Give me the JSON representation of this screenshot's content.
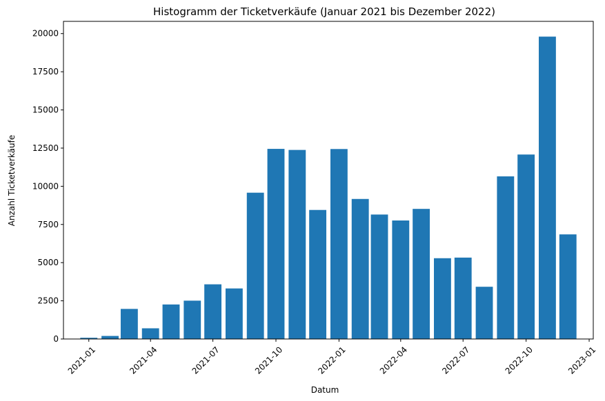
{
  "chart_data": {
    "type": "bar",
    "title": "Histogramm der Ticketverkäufe (Januar 2021 bis Dezember 2022)",
    "xlabel": "Datum",
    "ylabel": "Anzahl Ticketverkäufe",
    "x": [
      "2021-01-01",
      "2021-02-01",
      "2021-03-01",
      "2021-04-01",
      "2021-05-01",
      "2021-06-01",
      "2021-07-01",
      "2021-08-01",
      "2021-09-01",
      "2021-10-01",
      "2021-11-01",
      "2021-12-01",
      "2022-01-01",
      "2022-02-01",
      "2022-03-01",
      "2022-04-01",
      "2022-05-01",
      "2022-06-01",
      "2022-07-01",
      "2022-08-01",
      "2022-09-01",
      "2022-10-01",
      "2022-11-01",
      "2022-12-01"
    ],
    "values": [
      80,
      200,
      1970,
      700,
      2260,
      2510,
      3580,
      3310,
      9580,
      12450,
      12380,
      8450,
      12440,
      9170,
      8150,
      7760,
      8520,
      5290,
      5330,
      3420,
      10650,
      12080,
      19800,
      6850
    ],
    "xticks": [
      "2021-01",
      "2021-04",
      "2021-07",
      "2021-10",
      "2022-01",
      "2022-04",
      "2022-07",
      "2022-10",
      "2023-01"
    ],
    "xtick_dates": [
      "2021-01-01",
      "2021-04-01",
      "2021-07-01",
      "2021-10-01",
      "2022-01-01",
      "2022-04-01",
      "2022-07-01",
      "2022-10-01",
      "2023-01-01"
    ],
    "xlim": [
      "2020-11-25",
      "2023-01-07"
    ],
    "yticks": [
      0,
      2500,
      5000,
      7500,
      10000,
      12500,
      15000,
      17500,
      20000
    ],
    "ylim": [
      0,
      20800
    ],
    "bar_width_days": 25,
    "bar_color": "#1f77b4",
    "grid": false,
    "legend": false
  }
}
